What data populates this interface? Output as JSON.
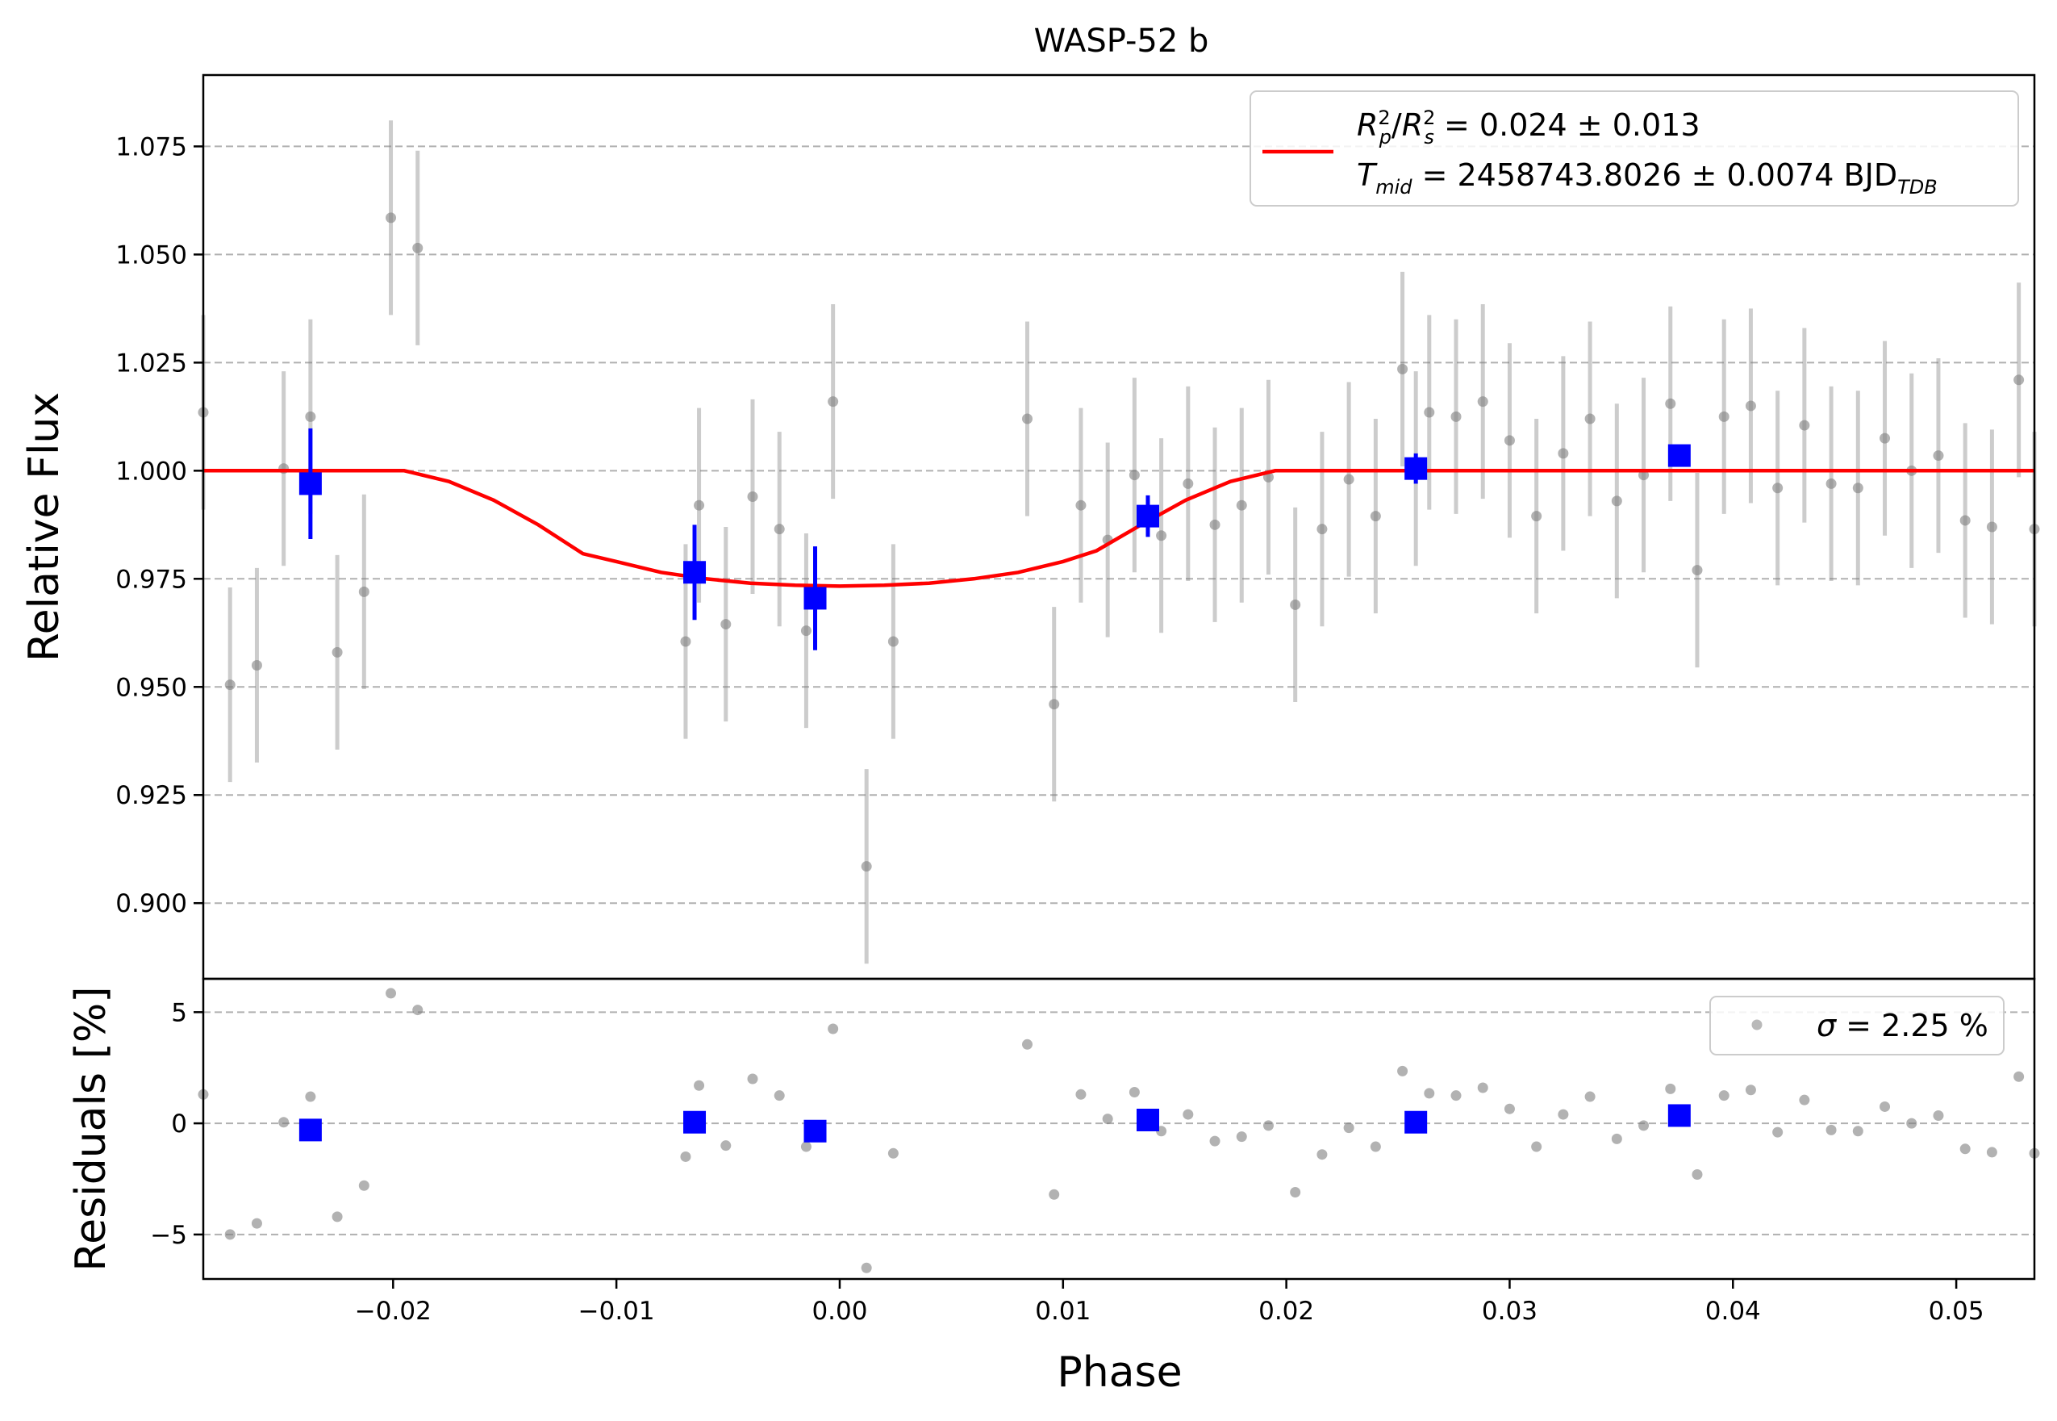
{
  "chart_data": [
    {
      "panel": "main",
      "type": "scatter",
      "title": "WASP-52 b",
      "xlabel": "",
      "ylabel": "Relative Flux",
      "xlim": [
        -0.0285,
        0.0535
      ],
      "ylim": [
        0.8825,
        1.0915
      ],
      "yticks": [
        "0.900",
        "0.925",
        "0.950",
        "0.975",
        "1.000",
        "1.025",
        "1.050",
        "1.075"
      ],
      "grid": "horizontal dashed",
      "legend_position": "top-right",
      "legend": {
        "line1_prefix": "R",
        "line1_rest": " = 0.024 ± 0.013",
        "line2_prefix": "T",
        "line2_sub": "mid",
        "line2_rest": " = 2458743.8026 ± 0.0074 BJD",
        "line2_unit_sub": "TDB"
      },
      "series": [
        {
          "kind": "unbinned",
          "color": "#7f7f7f",
          "x": [
            -0.0285,
            -0.0273,
            -0.0261,
            -0.0249,
            -0.0237,
            -0.0225,
            -0.0213,
            -0.0201,
            -0.0189,
            -0.0069,
            -0.0063,
            -0.0051,
            -0.0039,
            -0.0027,
            -0.0015,
            -0.0003,
            0.0012,
            0.0024,
            0.0084,
            0.0096,
            0.0108,
            0.012,
            0.0132,
            0.0144,
            0.0156,
            0.0168,
            0.018,
            0.0192,
            0.0204,
            0.0216,
            0.0228,
            0.024,
            0.0252,
            0.0258,
            0.0264,
            0.0276,
            0.0288,
            0.03,
            0.0312,
            0.0324,
            0.0336,
            0.0348,
            0.036,
            0.0372,
            0.0384,
            0.0396,
            0.0408,
            0.042,
            0.0432,
            0.0444,
            0.0456,
            0.0468,
            0.048,
            0.0492,
            0.0504,
            0.0516,
            0.0528,
            0.0535
          ],
          "y": [
            1.0135,
            0.9505,
            0.955,
            1.0005,
            1.0125,
            0.958,
            0.972,
            1.0585,
            1.0515,
            0.9605,
            0.992,
            0.9645,
            0.994,
            0.9865,
            0.963,
            1.016,
            0.9085,
            0.9605,
            1.012,
            0.946,
            0.992,
            0.984,
            0.999,
            0.985,
            0.997,
            0.9875,
            0.992,
            0.9985,
            0.969,
            0.9865,
            0.998,
            0.9895,
            1.0235,
            1.0005,
            1.0135,
            1.0125,
            1.016,
            1.007,
            0.9895,
            1.004,
            1.012,
            0.993,
            0.999,
            1.0155,
            0.977,
            1.0125,
            1.015,
            0.996,
            1.0105,
            0.997,
            0.996,
            1.0075,
            1.0,
            1.0035,
            0.9885,
            0.987,
            1.021,
            0.9865
          ],
          "yerr": 0.0225
        },
        {
          "kind": "binned",
          "color": "#0000ff",
          "x": [
            -0.0237,
            -0.0065,
            -0.0011,
            0.0138,
            0.0258,
            0.0376
          ],
          "y": [
            0.997,
            0.9765,
            0.9705,
            0.9895,
            1.0005,
            1.0035
          ],
          "yerr": [
            0.0128,
            0.011,
            0.012,
            0.0048,
            0.0035,
            0.0025
          ]
        },
        {
          "kind": "model",
          "name": "R_p^2/R_s^2 = 0.024 ± 0.013",
          "color": "#ff0000",
          "x": [
            -0.0285,
            -0.0195,
            -0.0175,
            -0.0155,
            -0.0135,
            -0.0115,
            -0.01,
            -0.008,
            -0.006,
            -0.004,
            -0.002,
            0.0,
            0.002,
            0.004,
            0.006,
            0.008,
            0.01,
            0.0115,
            0.0135,
            0.0155,
            0.0175,
            0.0195,
            0.0535
          ],
          "y": [
            1.0,
            1.0,
            0.9975,
            0.9932,
            0.9875,
            0.9808,
            0.979,
            0.9765,
            0.975,
            0.974,
            0.9735,
            0.9733,
            0.9735,
            0.974,
            0.975,
            0.9765,
            0.979,
            0.9815,
            0.9875,
            0.9932,
            0.9975,
            1.0,
            1.0
          ]
        }
      ]
    },
    {
      "panel": "residuals",
      "type": "scatter",
      "title": "",
      "xlabel": "Phase",
      "ylabel": "Residuals [%]",
      "xlim": [
        -0.0285,
        0.0535
      ],
      "ylim": [
        -7.0,
        6.5
      ],
      "yticks": [
        "−5",
        "0",
        "5"
      ],
      "xticks": [
        "−0.02",
        "−0.01",
        "0.00",
        "0.01",
        "0.02",
        "0.03",
        "0.04",
        "0.05"
      ],
      "grid": "horizontal dashed",
      "legend_position": "top-right",
      "legend": {
        "sigma_symbol": "σ",
        "sigma_text": " = 2.25 %"
      },
      "series": [
        {
          "kind": "unbinned",
          "color": "#7f7f7f",
          "x": [
            -0.0285,
            -0.0273,
            -0.0261,
            -0.0249,
            -0.0237,
            -0.0225,
            -0.0213,
            -0.0201,
            -0.0189,
            -0.0069,
            -0.0063,
            -0.0051,
            -0.0039,
            -0.0027,
            -0.0015,
            -0.0003,
            0.0012,
            0.0024,
            0.0084,
            0.0096,
            0.0108,
            0.012,
            0.0132,
            0.0144,
            0.0156,
            0.0168,
            0.018,
            0.0192,
            0.0204,
            0.0216,
            0.0228,
            0.024,
            0.0252,
            0.0258,
            0.0264,
            0.0276,
            0.0288,
            0.03,
            0.0312,
            0.0324,
            0.0336,
            0.0348,
            0.036,
            0.0372,
            0.0384,
            0.0396,
            0.0408,
            0.042,
            0.0432,
            0.0444,
            0.0456,
            0.0468,
            0.048,
            0.0492,
            0.0504,
            0.0516,
            0.0528,
            0.0535
          ],
          "y": [
            1.3,
            -5.0,
            -4.5,
            0.05,
            1.2,
            -4.2,
            -2.8,
            5.85,
            5.1,
            -1.5,
            1.7,
            -1.0,
            2.0,
            1.25,
            -1.05,
            4.25,
            -6.5,
            -1.35,
            3.55,
            -3.2,
            1.3,
            0.2,
            1.4,
            -0.35,
            0.4,
            -0.8,
            -0.6,
            -0.1,
            -3.1,
            -1.4,
            -0.2,
            -1.05,
            2.35,
            0.05,
            1.35,
            1.25,
            1.6,
            0.65,
            -1.05,
            0.4,
            1.2,
            -0.7,
            -0.1,
            1.55,
            -2.3,
            1.25,
            1.5,
            -0.4,
            1.05,
            -0.3,
            -0.35,
            0.75,
            0.0,
            0.35,
            -1.15,
            -1.3,
            2.1,
            -1.35
          ]
        },
        {
          "kind": "binned",
          "color": "#0000ff",
          "x": [
            -0.0237,
            -0.0065,
            -0.0011,
            0.0138,
            0.0258,
            0.0376
          ],
          "y": [
            -0.3,
            0.05,
            -0.35,
            0.15,
            0.05,
            0.35
          ]
        }
      ]
    }
  ]
}
